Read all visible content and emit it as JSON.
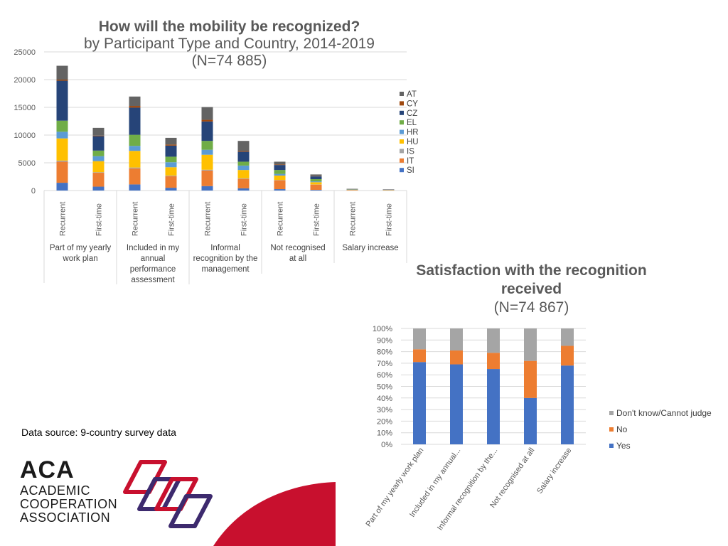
{
  "chart1": {
    "title_bold": "How will the mobility be recognized?",
    "title_line2": "by Participant Type and Country, 2014-2019",
    "title_line3": "(N=74 885)"
  },
  "chart2": {
    "title_bold_1": "Satisfaction with the recognition",
    "title_bold_2": "received",
    "title_line3": "(N=74 867)"
  },
  "data_source": "Data source: 9-country survey data",
  "logo": {
    "abbr": "ACA",
    "line1": "ACADEMIC",
    "line2": "COOPERATION",
    "line3": "ASSOCIATION"
  },
  "colors": {
    "AT": "#636363",
    "CY": "#9e480e",
    "CZ": "#264478",
    "EL": "#70ad47",
    "HR": "#5b9bd5",
    "HU": "#ffc000",
    "IS": "#a5a5a5",
    "IT": "#ed7d31",
    "SI": "#4472c4",
    "yes": "#4472c4",
    "no": "#ed7d31",
    "dk": "#a5a5a5",
    "logo_red": "#c8102e",
    "logo_purple": "#3d2a6e"
  },
  "chart_data": [
    {
      "type": "bar",
      "stacked": true,
      "ylim": [
        0,
        25000
      ],
      "yticks": [
        0,
        5000,
        10000,
        15000,
        20000,
        25000
      ],
      "ytick_labels": [
        "0",
        "5000",
        "10000",
        "15000",
        "20000",
        "25000"
      ],
      "grid": true,
      "legend_position": "right",
      "groups": [
        "Part of my yearly work plan",
        "Included in my annual performance assessment",
        "Informal recognition by the management",
        "Not recognised at all",
        "Salary increase"
      ],
      "group_label_lines": [
        [
          "Part of my yearly",
          "work plan"
        ],
        [
          "Included in my",
          "annual",
          "performance",
          "assessment"
        ],
        [
          "Informal",
          "recognition by the",
          "management"
        ],
        [
          "Not recognised",
          "at all"
        ],
        [
          "Salary increase"
        ]
      ],
      "categories": [
        "Recurrent",
        "First-time",
        "Recurrent",
        "First-time",
        "Recurrent",
        "First-time",
        "Recurrent",
        "First-time",
        "Recurrent",
        "First-time"
      ],
      "series": [
        {
          "name": "SI",
          "values": [
            1400,
            700,
            1100,
            500,
            800,
            400,
            250,
            120,
            20,
            10
          ]
        },
        {
          "name": "IT",
          "values": [
            3800,
            2500,
            2900,
            2100,
            2800,
            1700,
            1600,
            950,
            80,
            50
          ]
        },
        {
          "name": "IS",
          "values": [
            200,
            100,
            150,
            100,
            150,
            100,
            50,
            30,
            5,
            5
          ]
        },
        {
          "name": "HU",
          "values": [
            4000,
            2000,
            3000,
            1500,
            2700,
            1500,
            800,
            400,
            50,
            30
          ]
        },
        {
          "name": "HR",
          "values": [
            1200,
            900,
            900,
            900,
            900,
            800,
            300,
            150,
            20,
            15
          ]
        },
        {
          "name": "EL",
          "values": [
            2000,
            1000,
            2000,
            1000,
            1600,
            700,
            700,
            400,
            30,
            20
          ]
        },
        {
          "name": "CZ",
          "values": [
            7200,
            2600,
            4900,
            2000,
            3500,
            1800,
            900,
            500,
            40,
            30
          ]
        },
        {
          "name": "CY",
          "values": [
            200,
            100,
            300,
            200,
            300,
            150,
            100,
            50,
            5,
            5
          ]
        },
        {
          "name": "AT",
          "values": [
            2500,
            1400,
            1700,
            1200,
            2300,
            1800,
            500,
            300,
            60,
            55
          ]
        }
      ],
      "legend_order": [
        "AT",
        "CY",
        "CZ",
        "EL",
        "HR",
        "HU",
        "IS",
        "IT",
        "SI"
      ]
    },
    {
      "type": "bar",
      "stacked": true,
      "percent": true,
      "ylim": [
        0,
        100
      ],
      "yticks": [
        0,
        10,
        20,
        30,
        40,
        50,
        60,
        70,
        80,
        90,
        100
      ],
      "ytick_labels": [
        "0%",
        "10%",
        "20%",
        "30%",
        "40%",
        "50%",
        "60%",
        "70%",
        "80%",
        "90%",
        "100%"
      ],
      "grid": true,
      "legend_position": "right",
      "categories": [
        "Part of my yearly work plan",
        "Included in my annual...",
        "Informal recognition by the...",
        "Not recognised at all",
        "Salary increase"
      ],
      "series": [
        {
          "name": "Yes",
          "values": [
            71,
            69,
            65,
            40,
            68
          ]
        },
        {
          "name": "No",
          "values": [
            11,
            12,
            14,
            32,
            17
          ]
        },
        {
          "name": "Don't know/Cannot judge",
          "values": [
            18,
            19,
            21,
            28,
            15
          ]
        }
      ],
      "legend_order": [
        "Don't know/Cannot judge",
        "No",
        "Yes"
      ]
    }
  ]
}
